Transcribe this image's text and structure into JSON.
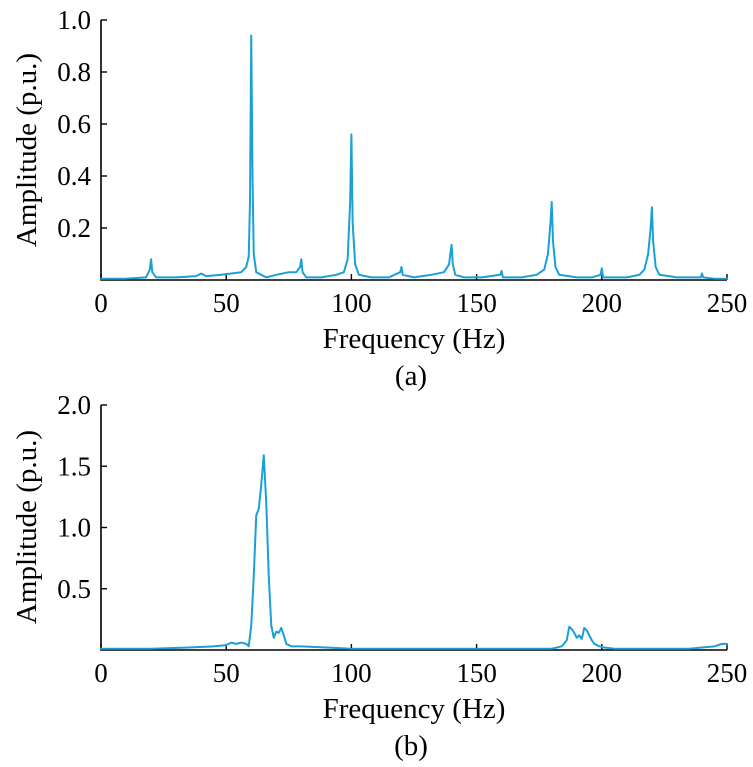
{
  "chart_data": [
    {
      "type": "line",
      "caption": "(a)",
      "xlabel": "Frequency (Hz)",
      "ylabel": "Amplitude (p.u.)",
      "xlim": [
        0,
        250
      ],
      "ylim": [
        0,
        1.0
      ],
      "xticks": [
        0,
        50,
        100,
        150,
        200,
        250
      ],
      "xtick_labels": [
        "0",
        "50",
        "100",
        "150",
        "200",
        "250"
      ],
      "yticks": [
        0.2,
        0.4,
        0.6,
        0.8,
        1.0
      ],
      "ytick_labels": [
        "0.2",
        "0.4",
        "0.6",
        "0.8",
        "1.0"
      ],
      "grid": false,
      "series_color": "#1aa0d6",
      "series": [
        {
          "x": [
            0,
            10,
            18,
            19.5,
            20,
            20.5,
            22,
            30,
            38,
            40,
            42,
            48,
            52,
            56,
            58,
            59,
            59.5,
            60,
            60.5,
            61,
            62,
            64,
            66,
            70,
            75,
            78,
            79.5,
            80,
            80.5,
            82,
            88,
            94,
            97,
            98.5,
            99.5,
            100,
            100.5,
            101.5,
            103,
            108,
            115,
            119.5,
            120,
            120.5,
            125,
            132,
            137,
            139,
            139.5,
            140,
            140.5,
            141.5,
            145,
            152,
            159.5,
            160,
            160.5,
            168,
            174,
            177,
            178.5,
            179.5,
            180,
            180.5,
            181.5,
            183,
            190,
            196,
            199.5,
            200,
            200.5,
            205,
            210,
            215,
            217,
            218.5,
            219.5,
            220,
            220.5,
            221.5,
            223,
            230,
            237,
            239.5,
            240,
            240.5,
            245,
            250
          ],
          "y": [
            0.005,
            0.005,
            0.01,
            0.04,
            0.08,
            0.03,
            0.01,
            0.01,
            0.015,
            0.025,
            0.015,
            0.02,
            0.025,
            0.03,
            0.05,
            0.09,
            0.3,
            0.94,
            0.4,
            0.1,
            0.03,
            0.02,
            0.01,
            0.02,
            0.03,
            0.03,
            0.05,
            0.08,
            0.03,
            0.01,
            0.01,
            0.02,
            0.03,
            0.08,
            0.3,
            0.56,
            0.22,
            0.06,
            0.02,
            0.01,
            0.01,
            0.03,
            0.05,
            0.02,
            0.01,
            0.02,
            0.03,
            0.06,
            0.1,
            0.135,
            0.06,
            0.02,
            0.01,
            0.01,
            0.02,
            0.035,
            0.01,
            0.01,
            0.02,
            0.04,
            0.1,
            0.22,
            0.3,
            0.15,
            0.05,
            0.02,
            0.01,
            0.01,
            0.02,
            0.045,
            0.01,
            0.01,
            0.01,
            0.02,
            0.04,
            0.1,
            0.2,
            0.28,
            0.15,
            0.05,
            0.02,
            0.01,
            0.01,
            0.01,
            0.025,
            0.01,
            0.005,
            0.005
          ]
        }
      ]
    },
    {
      "type": "line",
      "caption": "(b)",
      "xlabel": "Frequency (Hz)",
      "ylabel": "Amplitude (p.u.)",
      "xlim": [
        0,
        250
      ],
      "ylim": [
        0,
        2.0
      ],
      "xticks": [
        0,
        50,
        100,
        150,
        200,
        250
      ],
      "xtick_labels": [
        "0",
        "50",
        "100",
        "150",
        "200",
        "250"
      ],
      "yticks": [
        0.5,
        1.0,
        1.5,
        2.0
      ],
      "ytick_labels": [
        "0.5",
        "1.0",
        "1.5",
        "2.0"
      ],
      "grid": false,
      "series_color": "#1aa0d6",
      "series": [
        {
          "x": [
            0,
            20,
            35,
            45,
            50,
            52,
            54,
            56,
            58,
            59,
            60,
            61,
            62,
            63,
            64,
            65,
            66,
            67,
            68,
            69,
            70,
            71,
            72,
            73,
            74,
            76,
            80,
            90,
            100,
            110,
            120,
            130,
            140,
            150,
            160,
            170,
            180,
            184,
            186,
            187,
            188,
            189,
            190,
            191,
            192,
            193,
            194,
            195,
            196,
            197,
            199,
            201,
            205,
            215,
            225,
            235,
            240,
            245,
            248,
            250
          ],
          "y": [
            0.01,
            0.01,
            0.02,
            0.03,
            0.04,
            0.06,
            0.05,
            0.06,
            0.05,
            0.03,
            0.2,
            0.6,
            1.1,
            1.15,
            1.35,
            1.59,
            1.2,
            0.6,
            0.2,
            0.1,
            0.15,
            0.14,
            0.18,
            0.12,
            0.05,
            0.03,
            0.03,
            0.02,
            0.01,
            0.01,
            0.01,
            0.01,
            0.01,
            0.01,
            0.01,
            0.01,
            0.01,
            0.03,
            0.08,
            0.19,
            0.17,
            0.14,
            0.1,
            0.12,
            0.09,
            0.18,
            0.16,
            0.12,
            0.08,
            0.05,
            0.03,
            0.02,
            0.01,
            0.01,
            0.01,
            0.01,
            0.02,
            0.03,
            0.05,
            0.05
          ]
        }
      ]
    }
  ]
}
